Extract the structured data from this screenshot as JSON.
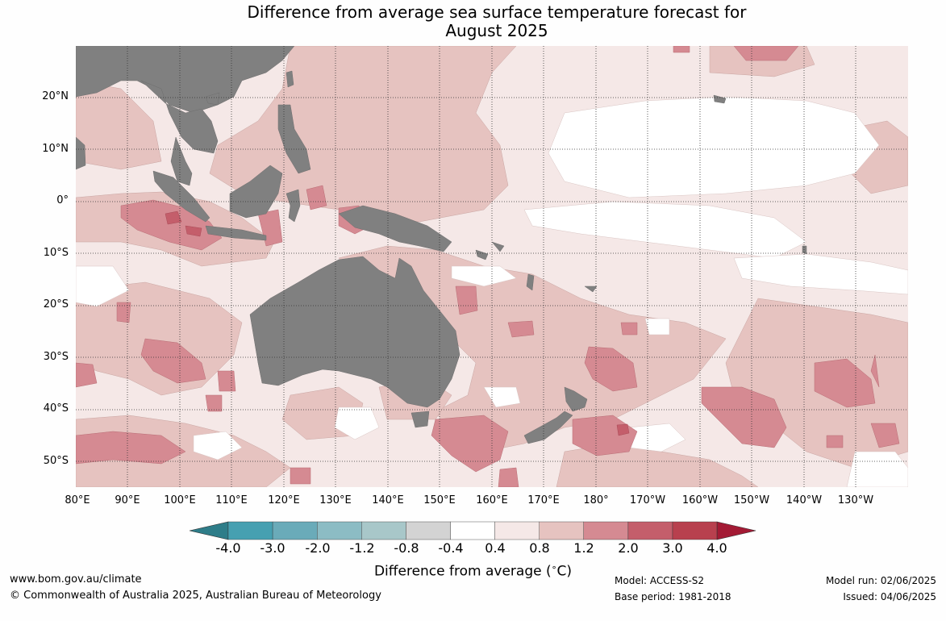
{
  "title": {
    "line1": "Difference from average sea surface temperature forecast for",
    "line2": "August 2025"
  },
  "map": {
    "region": "Indian and Pacific Oceans around Australia",
    "lat_labels": [
      "20°N",
      "10°N",
      "0°",
      "10°S",
      "20°S",
      "30°S",
      "40°S",
      "50°S"
    ],
    "lon_labels": [
      "80°E",
      "90°E",
      "100°E",
      "110°E",
      "120°E",
      "130°E",
      "140°E",
      "150°E",
      "160°E",
      "170°E",
      "180°",
      "170°W",
      "160°W",
      "150°W",
      "140°W",
      "130°W"
    ],
    "land_color": "#808080",
    "grid": "dotted"
  },
  "colorbar": {
    "ticks": [
      "-4.0",
      "-3.0",
      "-2.0",
      "-1.2",
      "-0.8",
      "-0.4",
      "0.4",
      "0.8",
      "1.2",
      "2.0",
      "3.0",
      "4.0"
    ],
    "colors": [
      "#2e7d89",
      "#46a0b1",
      "#6aabb9",
      "#8cbcc4",
      "#a8c7c9",
      "#d3d3d3",
      "#ffffff",
      "#f5e8e7",
      "#e6c3c0",
      "#d58a92",
      "#c45e6b",
      "#b8404e",
      "#a31a34"
    ],
    "title": "Difference from average (",
    "unit_sup": "∘",
    "unit": "C)"
  },
  "footer": {
    "website": "www.bom.gov.au/climate",
    "copyright": "© Commonwealth of Australia 2025, Australian Bureau of Meteorology",
    "model": "Model: ACCESS-S2",
    "base_period": "Base period: 1981-2018",
    "model_run": "Model run: 02/06/2025",
    "issued": "Issued: 04/06/2025"
  }
}
